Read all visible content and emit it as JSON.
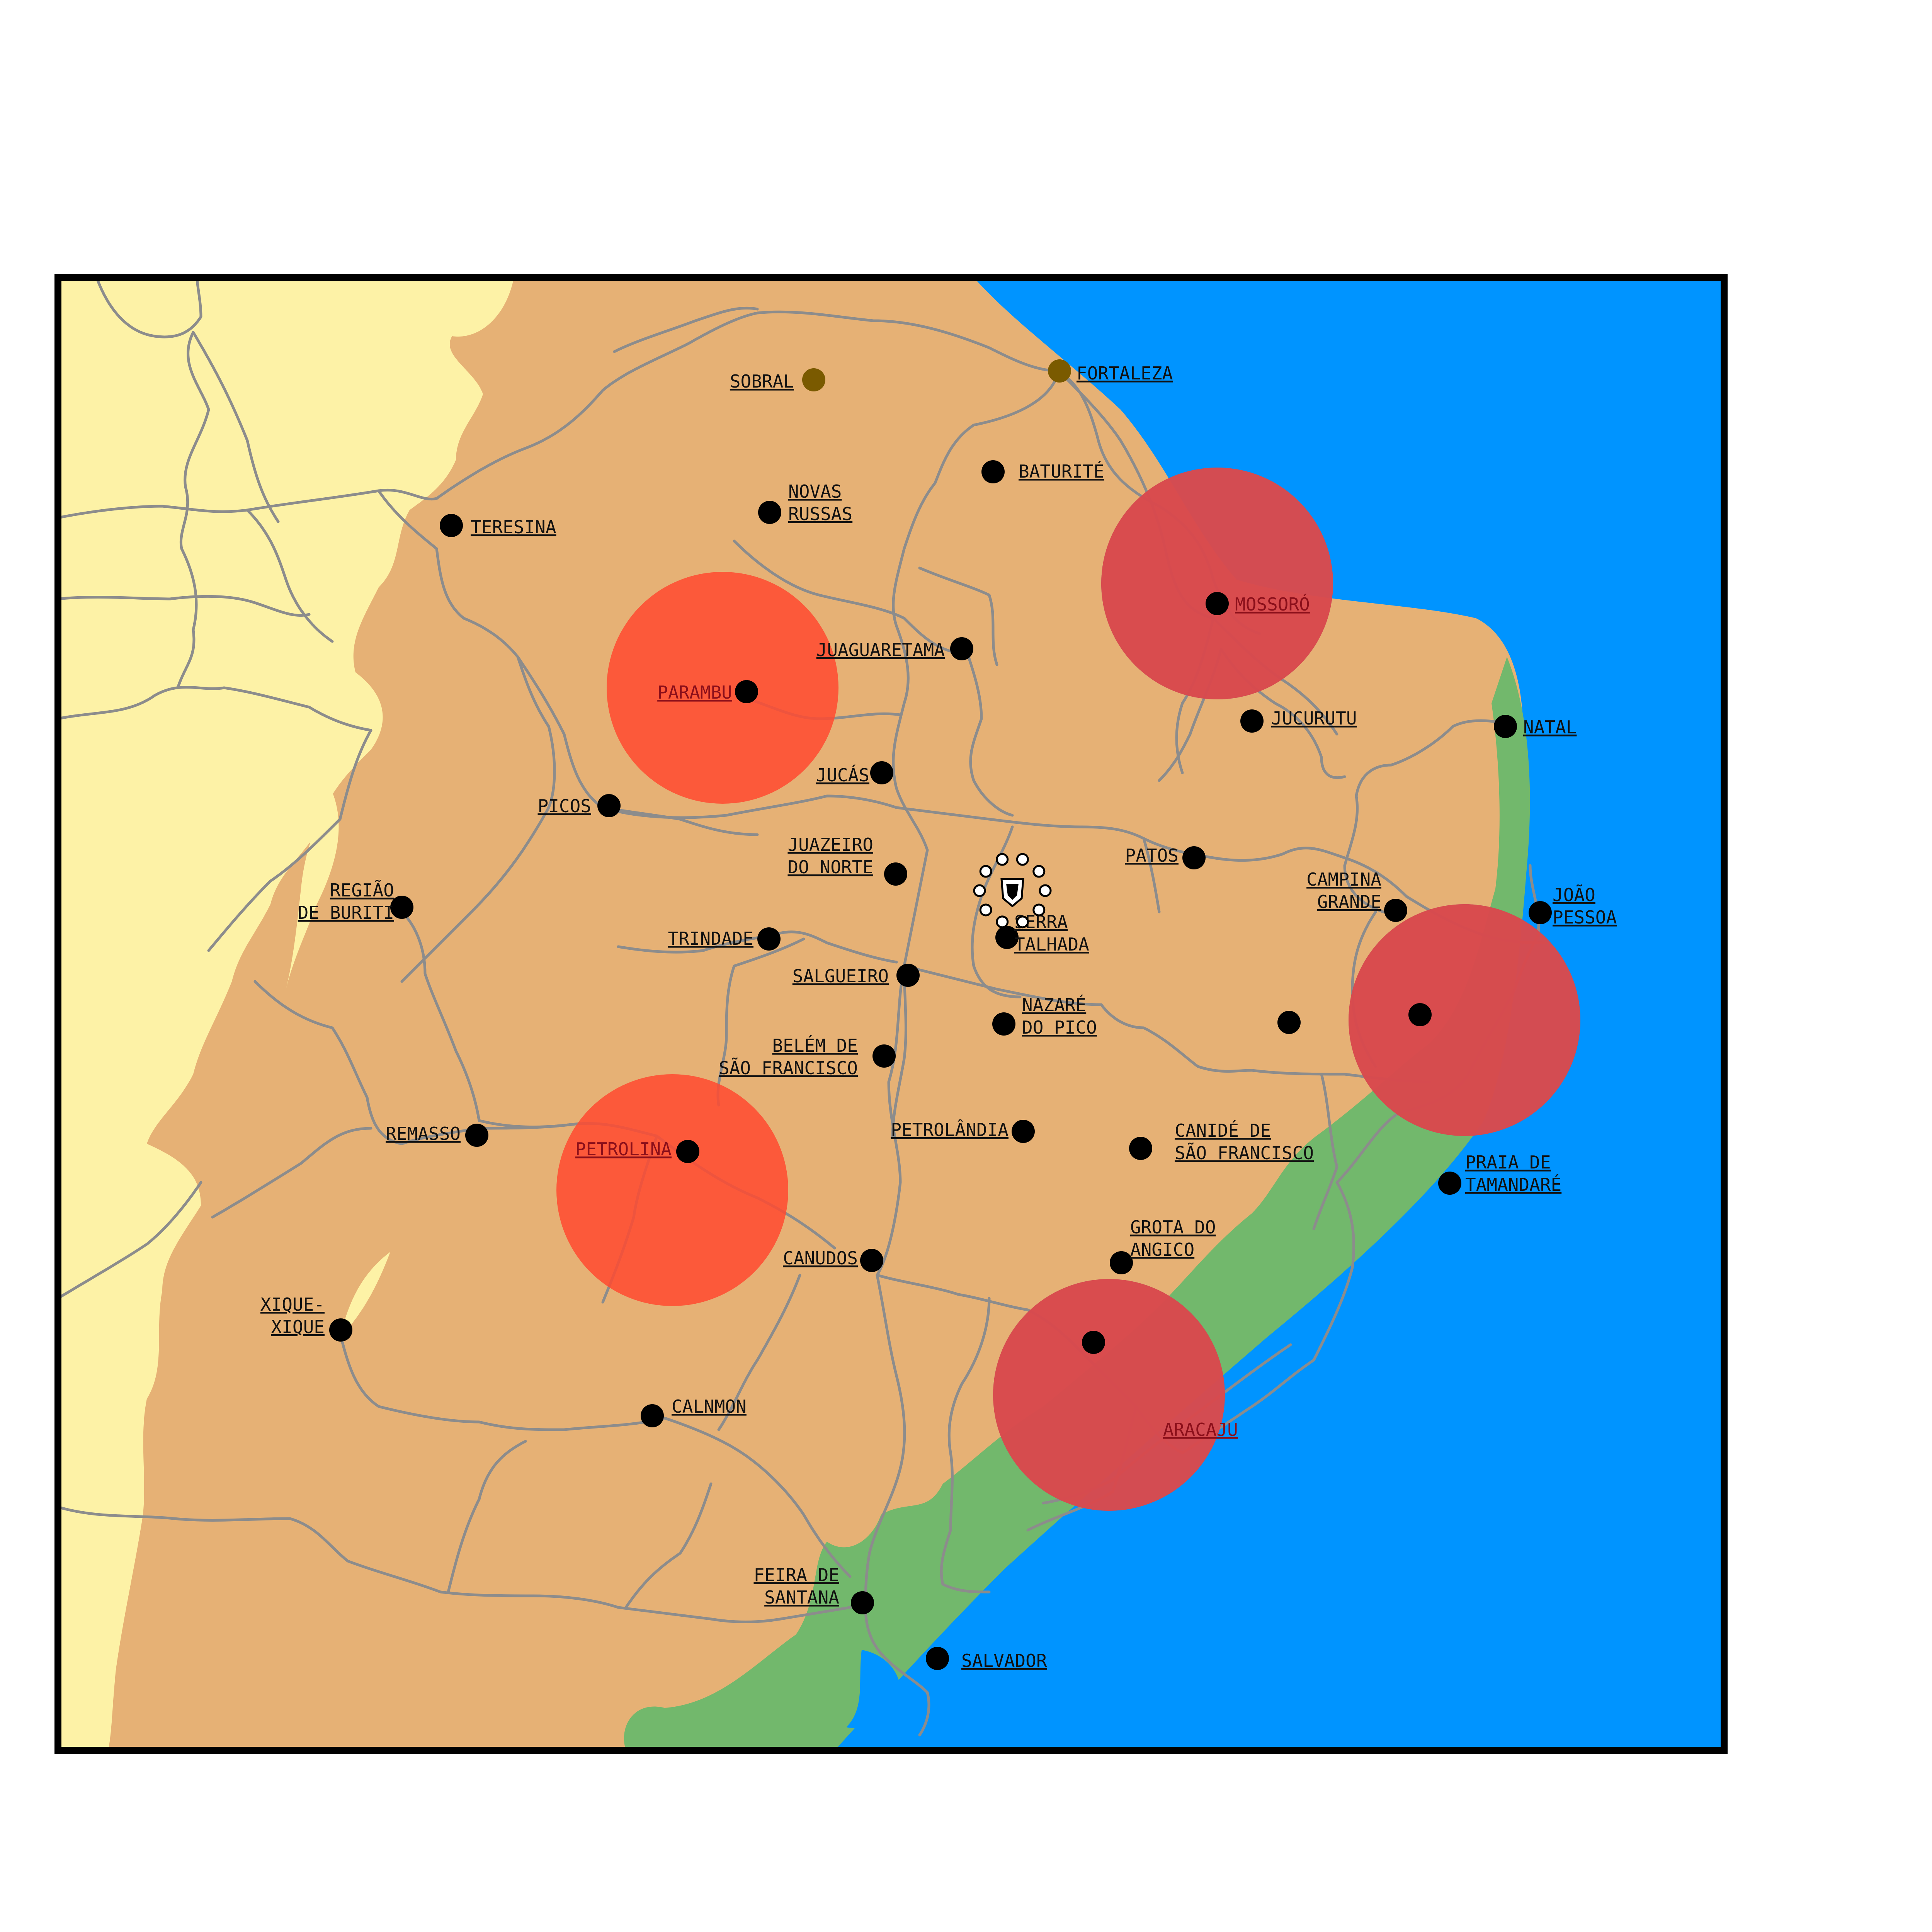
{
  "colors": {
    "ocean": "#0094ff",
    "plateau": "#e6b175",
    "west": "#fdf2a6",
    "coast": "#72b86c",
    "road": "#8c8c8c",
    "circle_red": "#ff4a30",
    "circle_purple": "#6a4aa0",
    "capital_dot": "#7a5a00",
    "city_dot": "#000000",
    "frame": "#000000"
  },
  "cities": [
    {
      "id": "sobral",
      "lines": [
        "SOBRAL"
      ],
      "kind": "capital"
    },
    {
      "id": "fortaleza",
      "lines": [
        "FORTALEZA"
      ],
      "kind": "capital"
    },
    {
      "id": "baturite",
      "lines": [
        "BATURITÉ"
      ],
      "kind": "city"
    },
    {
      "id": "novas-russas",
      "lines": [
        "NOVAS",
        "RUSSAS"
      ],
      "kind": "city"
    },
    {
      "id": "teresina",
      "lines": [
        "TERESINA"
      ],
      "kind": "city"
    },
    {
      "id": "mossoro",
      "lines": [
        "MOSSORÓ"
      ],
      "kind": "city",
      "highlight": true
    },
    {
      "id": "juaguaretama",
      "lines": [
        "JUAGUARETAMA"
      ],
      "kind": "city"
    },
    {
      "id": "parambu",
      "lines": [
        "PARAMBU"
      ],
      "kind": "city",
      "highlight": true
    },
    {
      "id": "jucurutu",
      "lines": [
        "JUCURUTU"
      ],
      "kind": "city"
    },
    {
      "id": "natal",
      "lines": [
        "NATAL"
      ],
      "kind": "city"
    },
    {
      "id": "jucas",
      "lines": [
        "JUCÁS"
      ],
      "kind": "city"
    },
    {
      "id": "picos",
      "lines": [
        "PICOS"
      ],
      "kind": "city"
    },
    {
      "id": "patos",
      "lines": [
        "PATOS"
      ],
      "kind": "city"
    },
    {
      "id": "juazeiro",
      "lines": [
        "JUAZEIRO",
        "DO NORTE"
      ],
      "kind": "city"
    },
    {
      "id": "regiao-buriti",
      "lines": [
        "REGIÃO",
        "DE BURITI"
      ],
      "kind": "city"
    },
    {
      "id": "campina-grande",
      "lines": [
        "CAMPINA",
        "GRANDE"
      ],
      "kind": "city"
    },
    {
      "id": "joao-pessoa",
      "lines": [
        "JOÃO",
        "PESSOA"
      ],
      "kind": "city"
    },
    {
      "id": "serra-talhada",
      "lines": [
        "SERRA",
        "TALHADA"
      ],
      "kind": "city"
    },
    {
      "id": "trindade",
      "lines": [
        "TRINDADE"
      ],
      "kind": "city"
    },
    {
      "id": "salgueiro",
      "lines": [
        "SALGUEIRO"
      ],
      "kind": "city"
    },
    {
      "id": "nazare",
      "lines": [
        "NAZARÉ",
        "DO PICO"
      ],
      "kind": "city"
    },
    {
      "id": "unnamed-1",
      "lines": [],
      "kind": "city"
    },
    {
      "id": "unnamed-2",
      "lines": [],
      "kind": "city"
    },
    {
      "id": "belem",
      "lines": [
        "BELÉM DE",
        "SÃO FRANCISCO"
      ],
      "kind": "city"
    },
    {
      "id": "remasso",
      "lines": [
        "REMASSO"
      ],
      "kind": "city"
    },
    {
      "id": "petrolina",
      "lines": [
        "PETROLINA"
      ],
      "kind": "city",
      "highlight": true
    },
    {
      "id": "petrolandia",
      "lines": [
        "PETROLÂNDIA"
      ],
      "kind": "city"
    },
    {
      "id": "canide",
      "lines": [
        "CANIDÉ DE",
        "SÃO FRANCISCO"
      ],
      "kind": "city"
    },
    {
      "id": "praia-tamandare",
      "lines": [
        "PRAIA DE",
        "TAMANDARÉ"
      ],
      "kind": "city"
    },
    {
      "id": "grota",
      "lines": [
        "GROTA DO",
        "ANGICO"
      ],
      "kind": "city"
    },
    {
      "id": "canudos",
      "lines": [
        "CANUDOS"
      ],
      "kind": "city"
    },
    {
      "id": "xique-xique",
      "lines": [
        "XIQUE-",
        "XIQUE"
      ],
      "kind": "city"
    },
    {
      "id": "unnamed-3",
      "lines": [],
      "kind": "city"
    },
    {
      "id": "aracaju",
      "lines": [
        "ARACAJU"
      ],
      "kind": "city",
      "highlight": true
    },
    {
      "id": "calnmon",
      "lines": [
        "CALNMON"
      ],
      "kind": "city"
    },
    {
      "id": "feira",
      "lines": [
        "FEIRA DE",
        "SANTANA"
      ],
      "kind": "city"
    },
    {
      "id": "salvador",
      "lines": [
        "SALVADOR"
      ],
      "kind": "city"
    }
  ],
  "circles": [
    {
      "id": "parambu-zone",
      "color": "red"
    },
    {
      "id": "mossoro-zone",
      "color": "red-purple"
    },
    {
      "id": "petrolina-zone",
      "color": "red"
    },
    {
      "id": "aracaju-zone",
      "color": "red-purple"
    },
    {
      "id": "joao-pessoa-zone",
      "color": "red-purple"
    }
  ],
  "marker": {
    "icon": "crest-icon"
  }
}
